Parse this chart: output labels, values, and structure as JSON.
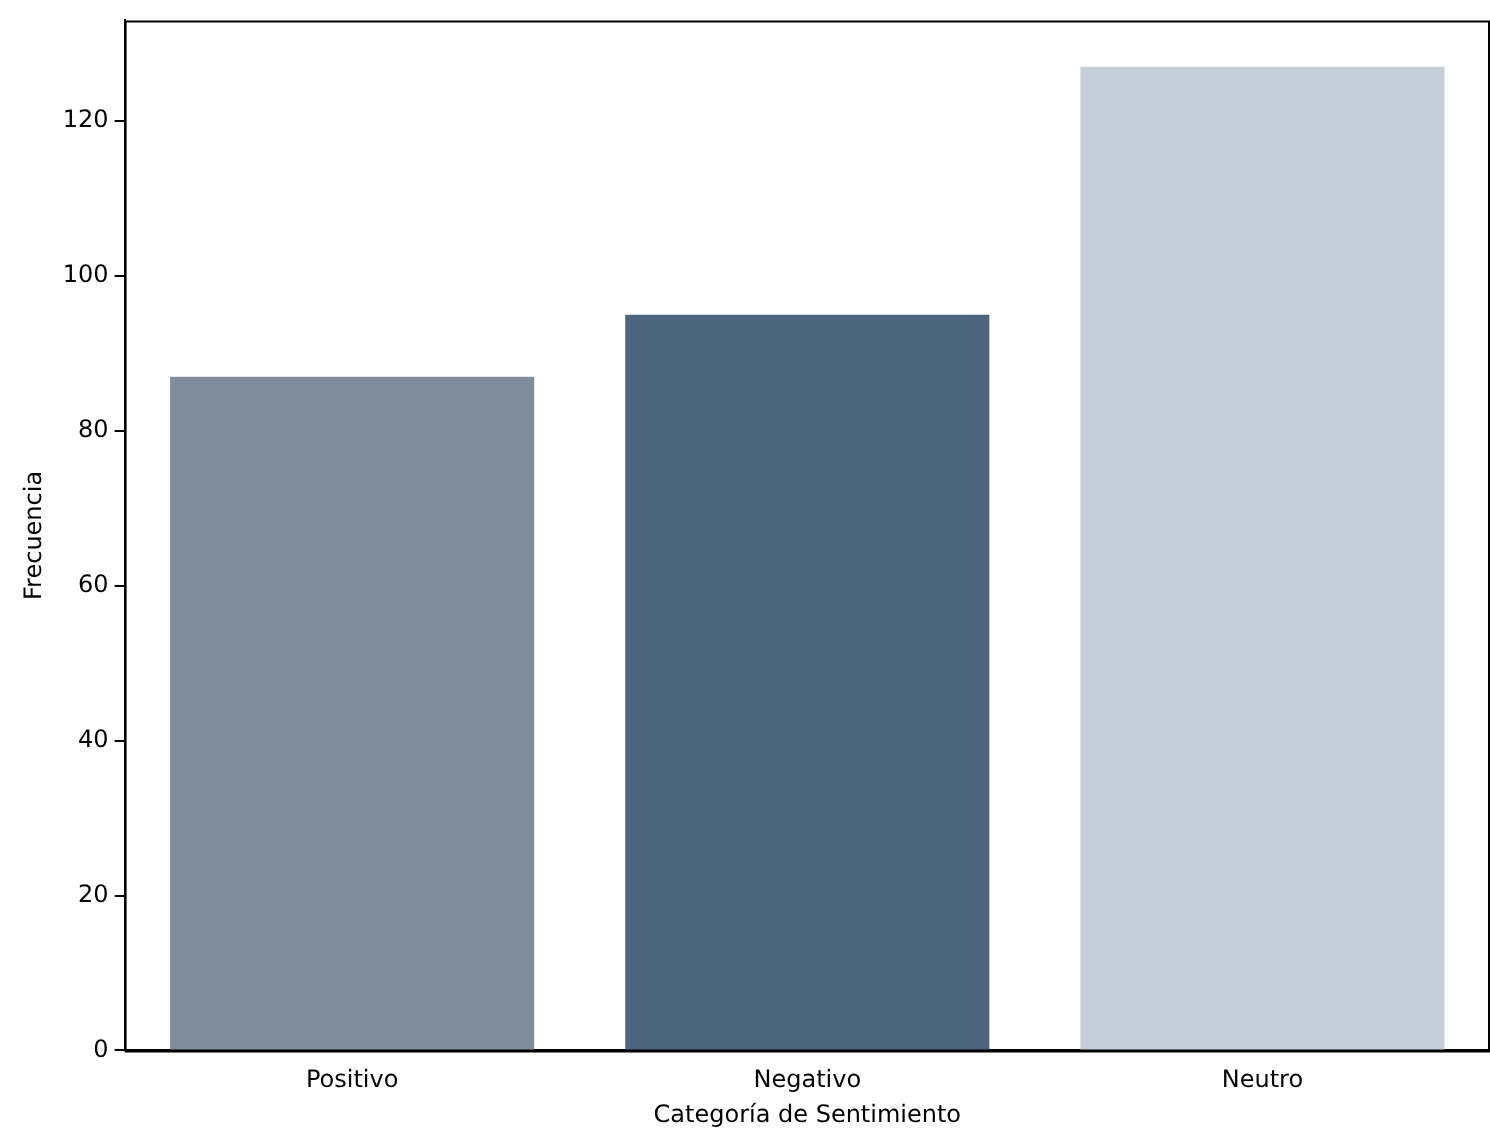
{
  "chart_data": {
    "type": "bar",
    "xlabel": "Categoría de Sentimiento",
    "ylabel": "Frecuencia",
    "categories": [
      "Positivo",
      "Negativo",
      "Neutro"
    ],
    "values": [
      87,
      95,
      127
    ],
    "colors": [
      "#7f8c9c",
      "#4e6580",
      "#c6ced7"
    ],
    "ylim": [
      0,
      133
    ],
    "yticks": [
      0,
      20,
      40,
      60,
      80,
      100,
      120
    ],
    "grid": false,
    "legend": false
  }
}
